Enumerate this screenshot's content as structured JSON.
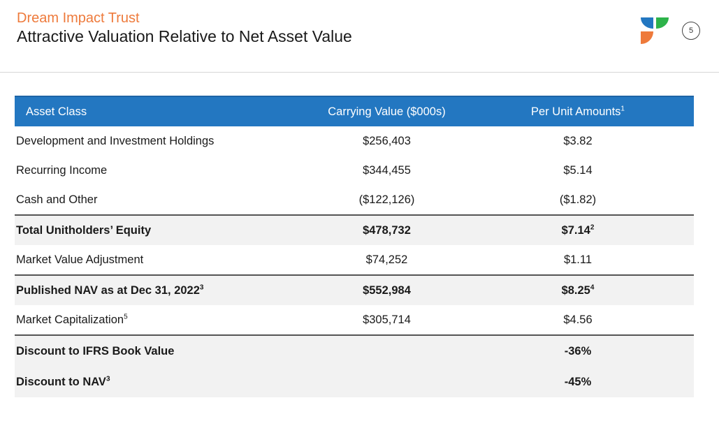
{
  "header": {
    "subtitle": "Dream Impact Trust",
    "title": "Attractive Valuation Relative to Net Asset Value",
    "page_number": "5",
    "logo_colors": {
      "blue": "#2377c1",
      "green": "#2db34a",
      "orange": "#ee7a3b"
    }
  },
  "table": {
    "header_color": "#2377c1",
    "columns": [
      {
        "label": "Asset Class",
        "sup": ""
      },
      {
        "label": "Carrying Value ($000s)",
        "sup": ""
      },
      {
        "label": "Per Unit Amounts",
        "sup": "1"
      }
    ],
    "rows": [
      {
        "label": "Development and Investment Holdings",
        "label_sup": "",
        "carrying": "$256,403",
        "per_unit": "$3.82",
        "per_unit_sup": ""
      },
      {
        "label": "Recurring Income",
        "label_sup": "",
        "carrying": "$344,455",
        "per_unit": "$5.14",
        "per_unit_sup": ""
      },
      {
        "label": "Cash and Other",
        "label_sup": "",
        "carrying": "($122,126)",
        "per_unit": "($1.82)",
        "per_unit_sup": ""
      },
      {
        "label": "Total Unitholders’ Equity",
        "label_sup": "",
        "carrying": "$478,732",
        "per_unit": "$7.14",
        "per_unit_sup": "2"
      },
      {
        "label": "Market Value Adjustment",
        "label_sup": "",
        "carrying": "$74,252",
        "per_unit": "$1.11",
        "per_unit_sup": ""
      },
      {
        "label": "Published NAV as at Dec 31, 2022",
        "label_sup": "3",
        "carrying": "$552,984",
        "per_unit": "$8.25",
        "per_unit_sup": "4"
      },
      {
        "label": "Market Capitalization",
        "label_sup": "5",
        "carrying": "$305,714",
        "per_unit": "$4.56",
        "per_unit_sup": ""
      },
      {
        "label": "Discount to IFRS Book Value",
        "label_sup": "",
        "carrying": "",
        "per_unit": "-36%",
        "per_unit_sup": ""
      },
      {
        "label": "Discount to NAV",
        "label_sup": "3",
        "carrying": "",
        "per_unit": "-45%",
        "per_unit_sup": ""
      }
    ]
  }
}
